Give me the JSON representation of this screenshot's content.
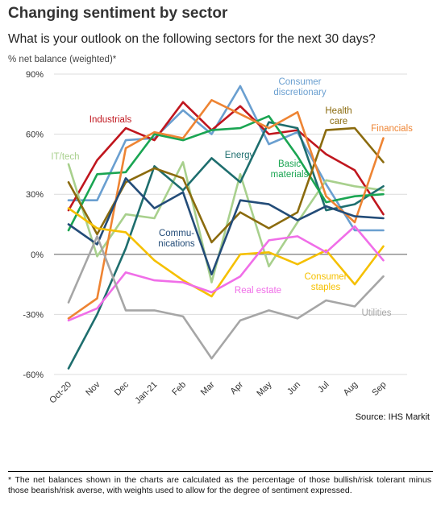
{
  "header": {
    "title": "Changing sentiment by sector",
    "subtitle": "What is your outlook on the following sectors for the next 30 days?",
    "unit": "% net balance (weighted)*"
  },
  "source": "Source: IHS Markit",
  "footnote": "* The net balances shown in the charts are calculated as the percentage of those bullish/risk tolerant minus those bearish/risk averse, with weights used to allow for the degree of sentiment expressed.",
  "chart_data": {
    "type": "line",
    "title": "Changing sentiment by sector",
    "ylabel": "% net balance (weighted)*",
    "xlabel": "",
    "ylim": [
      -60,
      90
    ],
    "yticks": [
      90,
      60,
      30,
      0,
      -30,
      -60
    ],
    "ytick_labels": [
      "90%",
      "60%",
      "30%",
      "0%",
      "-30%",
      "-60%"
    ],
    "grid": "horizontal",
    "categories": [
      "Oct-20",
      "Nov",
      "Dec",
      "Jan-21",
      "Feb",
      "Mar",
      "Apr",
      "May",
      "Jun",
      "Jul",
      "Aug",
      "Sep"
    ],
    "series": [
      {
        "name": "Consumer discretionary",
        "color": "#6a9fd0",
        "values": [
          27,
          27,
          57,
          58,
          72,
          60,
          84,
          55,
          61,
          35,
          12,
          12
        ],
        "label_lines": [
          "Consumer",
          "discretionary"
        ]
      },
      {
        "name": "Industrials",
        "color": "#c0161e",
        "values": [
          22,
          47,
          63,
          57,
          76,
          62,
          74,
          60,
          62,
          50,
          42,
          20
        ],
        "label_lines": [
          "Industrials"
        ]
      },
      {
        "name": "IT/tech",
        "color": "#a8d08d",
        "values": [
          45,
          -1,
          20,
          18,
          46,
          -14,
          40,
          -6,
          16,
          37,
          34,
          32
        ],
        "label_lines": [
          "IT/tech"
        ]
      },
      {
        "name": "Energy",
        "color": "#1e6e6e",
        "values": [
          -57,
          -30,
          3,
          44,
          32,
          48,
          36,
          66,
          63,
          22,
          25,
          34
        ],
        "label_lines": [
          "Energy"
        ]
      },
      {
        "name": "Basic materials",
        "color": "#1aa552",
        "values": [
          12,
          40,
          41,
          60,
          57,
          62,
          63,
          69,
          49,
          26,
          29,
          30
        ],
        "label_lines": [
          "Basic",
          "materials"
        ]
      },
      {
        "name": "Health care",
        "color": "#8b6b0e",
        "values": [
          36,
          10,
          36,
          43,
          38,
          6,
          21,
          13,
          21,
          62,
          63,
          46
        ],
        "label_lines": [
          "Health",
          "care"
        ]
      },
      {
        "name": "Financials",
        "color": "#ee8433",
        "values": [
          -32,
          -22,
          53,
          61,
          58,
          77,
          70,
          63,
          71,
          29,
          16,
          58
        ],
        "label_lines": [
          "Financials"
        ]
      },
      {
        "name": "Communications",
        "color": "#234c78",
        "values": [
          15,
          5,
          38,
          23,
          31,
          -10,
          27,
          25,
          17,
          24,
          19,
          18
        ],
        "label_lines": [
          "Commu-",
          "nications"
        ]
      },
      {
        "name": "Consumer staples",
        "color": "#f5c000",
        "values": [
          23,
          13,
          11,
          -3,
          -13,
          -21,
          0,
          1,
          -5,
          2,
          -15,
          4
        ],
        "label_lines": [
          "Consumer",
          "staples"
        ]
      },
      {
        "name": "Real estate",
        "color": "#f06ee8",
        "values": [
          -33,
          -27,
          -9,
          -13,
          -14,
          -19,
          -11,
          7,
          9,
          1,
          14,
          -3
        ],
        "label_lines": [
          "Real estate"
        ]
      },
      {
        "name": "Utilities",
        "color": "#a6a6a6",
        "values": [
          -24,
          9,
          -28,
          -28,
          -31,
          -52,
          -33,
          -28,
          -32,
          -23,
          -26,
          -11
        ],
        "label_lines": [
          "Utilities"
        ]
      }
    ]
  }
}
